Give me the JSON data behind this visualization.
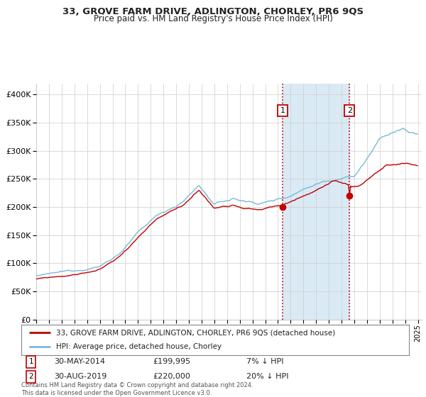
{
  "title": "33, GROVE FARM DRIVE, ADLINGTON, CHORLEY, PR6 9QS",
  "subtitle": "Price paid vs. HM Land Registry's House Price Index (HPI)",
  "legend_line1": "33, GROVE FARM DRIVE, ADLINGTON, CHORLEY, PR6 9QS (detached house)",
  "legend_line2": "HPI: Average price, detached house, Chorley",
  "annotation1_label": "1",
  "annotation1_date": "30-MAY-2014",
  "annotation1_price": 199995,
  "annotation1_pct": "7% ↓ HPI",
  "annotation2_label": "2",
  "annotation2_date": "30-AUG-2019",
  "annotation2_price": 220000,
  "annotation2_pct": "20% ↓ HPI",
  "footer": "Contains HM Land Registry data © Crown copyright and database right 2024.\nThis data is licensed under the Open Government Licence v3.0.",
  "hpi_color": "#7ab8d9",
  "price_color": "#c00000",
  "highlight_color": "#daeaf5",
  "vline_color": "#c00000",
  "dot_color": "#c00000",
  "background_color": "#ffffff",
  "grid_color": "#cccccc",
  "ymin": 0,
  "ymax": 420000,
  "xmin": 1995.0,
  "xmax": 2025.3
}
